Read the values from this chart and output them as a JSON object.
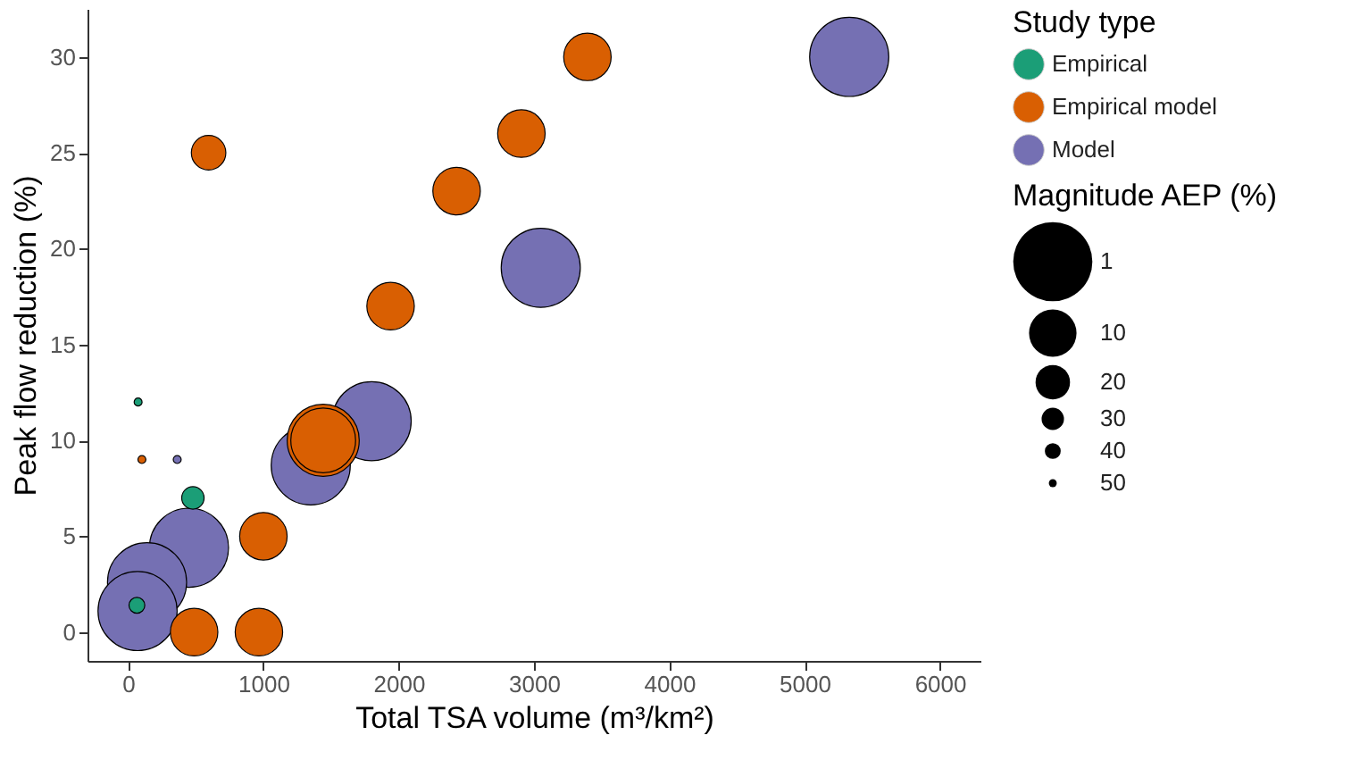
{
  "chart_data": {
    "type": "bubble",
    "xlabel": "Total TSA volume (m³/km²)",
    "ylabel": "Peak flow reduction (%)",
    "legend_title": "Study type",
    "annotations": [
      "Magnitude AEP (%)"
    ],
    "xlim": [
      -300,
      6300
    ],
    "xticks": [
      0,
      1000,
      2000,
      3000,
      4000,
      5000,
      6000
    ],
    "ylim": [
      -1.5,
      32.5
    ],
    "yticks": [
      0,
      5,
      10,
      15,
      20,
      25,
      30
    ],
    "size_legend": [
      {
        "value": 1,
        "label": "1"
      },
      {
        "value": 0.36,
        "label": "10"
      },
      {
        "value": 0.19,
        "label": "20"
      },
      {
        "value": 0.08,
        "label": "30"
      },
      {
        "value": 0.04,
        "label": "40"
      },
      {
        "value": 0.01,
        "label": "50"
      }
    ],
    "grid": false,
    "legend": "right",
    "series": [
      {
        "name": "Empirical",
        "color": "#1b9e77",
        "x": [
          74,
          479,
          65
        ],
        "values": [
          12,
          7,
          1.4
        ],
        "sizes": [
          0.01,
          0.08,
          0.04
        ]
      },
      {
        "name": "Empirical model",
        "color": "#d95f02",
        "x": [
          3395,
          2907,
          2428,
          1940,
          595,
          1442,
          1442,
          1000,
          488,
          967,
          102
        ],
        "values": [
          30,
          26,
          23,
          17,
          25,
          10,
          10,
          5,
          0,
          0,
          9
        ],
        "sizes": [
          0.36,
          0.36,
          0.36,
          0.36,
          0.19,
          0.83,
          0.67,
          0.36,
          0.36,
          0.36,
          0.01
        ]
      },
      {
        "name": "Model",
        "color": "#7570b3",
        "x": [
          5330,
          3050,
          1800,
          1350,
          450,
          140,
          70,
          363
        ],
        "values": [
          30,
          19,
          11,
          8.7,
          4.4,
          2.6,
          1.1,
          9
        ],
        "sizes": [
          1,
          1,
          1,
          1,
          1,
          1,
          1,
          0.01
        ]
      }
    ]
  }
}
